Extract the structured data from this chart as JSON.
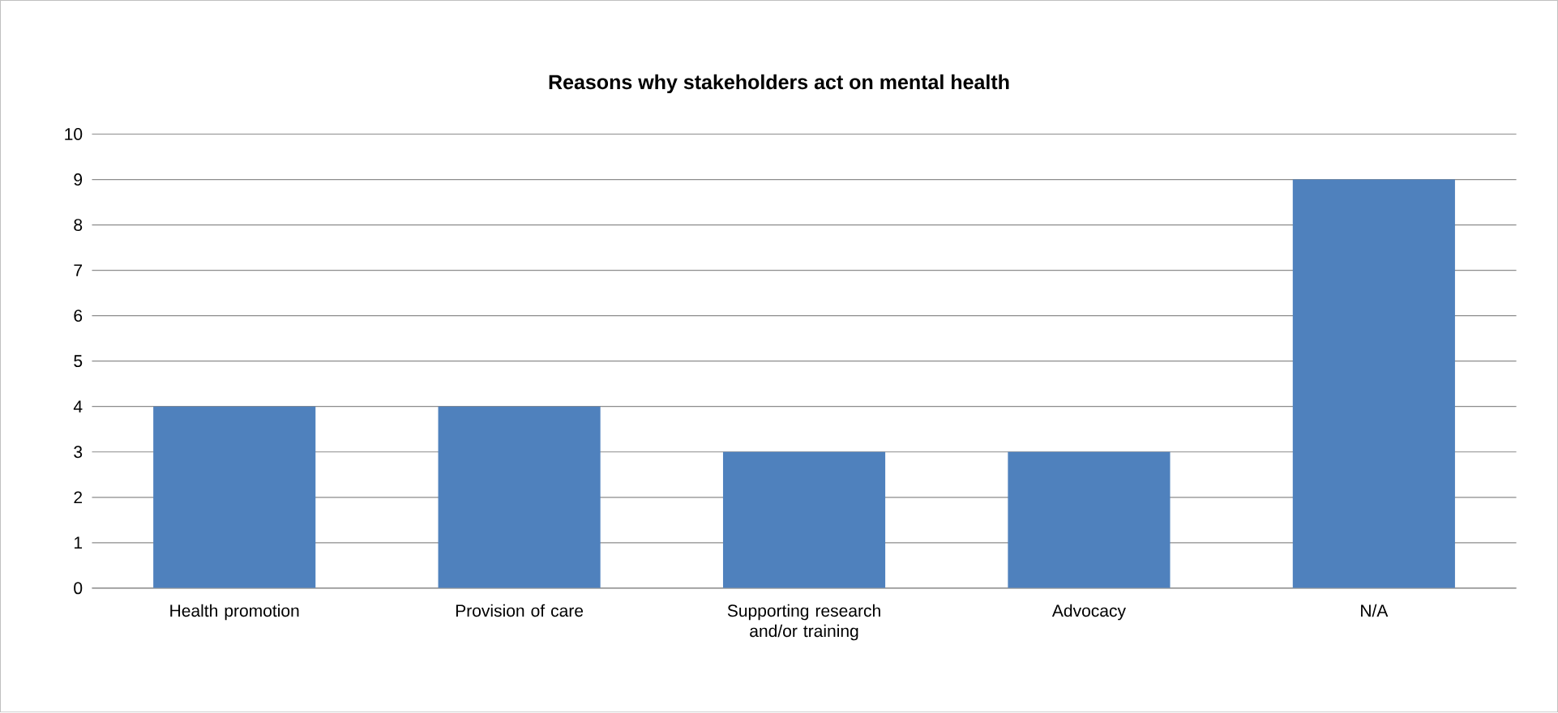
{
  "chart_data": {
    "type": "bar",
    "title": "Reasons why stakeholders act on mental health",
    "categories": [
      "Health promotion",
      "Provision of care",
      "Supporting research and/or training",
      "Advocacy",
      "N/A"
    ],
    "values": [
      4,
      4,
      3,
      3,
      9
    ],
    "color": "#4f81bd",
    "ylim": [
      0,
      10
    ],
    "yticks": [
      0,
      1,
      2,
      3,
      4,
      5,
      6,
      7,
      8,
      9,
      10
    ],
    "grid": "y"
  }
}
